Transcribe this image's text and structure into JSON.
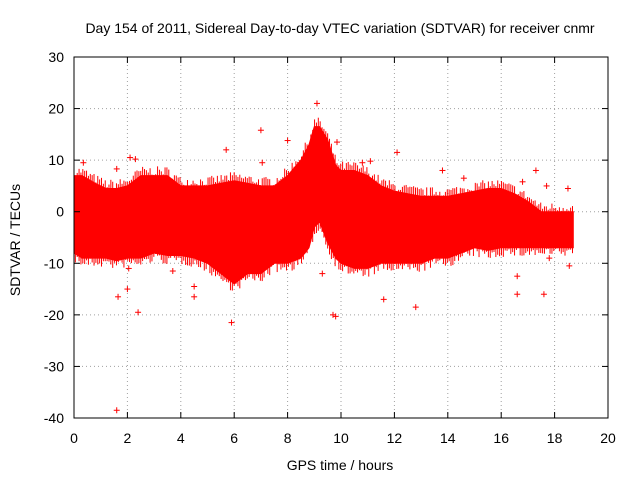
{
  "chart_data": {
    "type": "scatter",
    "title": "Day 154 of 2011, Sidereal Day-to-day VTEC variation (SDTVAR) for receiver cnmr",
    "xlabel": "GPS time / hours",
    "ylabel": "SDTVAR / TECUs",
    "xlim": [
      0,
      20
    ],
    "ylim": [
      -40,
      30
    ],
    "xticks": [
      "0",
      "2",
      "4",
      "6",
      "8",
      "10",
      "12",
      "14",
      "16",
      "18",
      "20"
    ],
    "yticks": [
      "30",
      "20",
      "10",
      "0",
      "-10",
      "-20",
      "-30",
      "-40"
    ],
    "grid": true,
    "marker": "+",
    "series_color": "#ff0000",
    "data_extent_hours": [
      0,
      18.7
    ],
    "envelope": {
      "x": [
        0,
        0.3,
        0.8,
        1.2,
        1.6,
        2.0,
        2.5,
        3.0,
        3.5,
        4.0,
        4.5,
        5.0,
        5.5,
        6.0,
        6.5,
        7.0,
        7.5,
        8.0,
        8.5,
        8.8,
        9.0,
        9.2,
        9.5,
        9.8,
        10.0,
        10.5,
        11.0,
        11.5,
        12.0,
        12.5,
        13.0,
        13.5,
        14.0,
        14.5,
        15.0,
        15.5,
        16.0,
        16.5,
        17.0,
        17.5,
        18.0,
        18.5,
        18.7
      ],
      "upper": [
        7,
        7,
        5.5,
        4.5,
        4.5,
        5,
        7,
        7,
        7,
        5,
        5,
        5,
        5.5,
        6,
        5.5,
        5,
        5,
        7,
        10,
        13,
        16.5,
        16.5,
        14,
        9,
        8,
        8,
        7,
        5,
        4,
        3.5,
        3,
        3,
        3,
        3.5,
        4,
        4.5,
        4.5,
        3.5,
        2,
        0,
        0,
        0,
        0
      ],
      "lower": [
        -8,
        -9,
        -9,
        -9,
        -9.5,
        -9,
        -9,
        -8,
        -8.5,
        -8.5,
        -9,
        -10,
        -12,
        -14,
        -12,
        -12,
        -10,
        -10,
        -9,
        -7,
        -3,
        -2,
        -6,
        -9,
        -10,
        -11,
        -11,
        -10,
        -10,
        -10,
        -10,
        -9,
        -9,
        -8,
        -7,
        -7.5,
        -7,
        -7,
        -7,
        -7,
        -7,
        -7,
        -7
      ]
    },
    "outliers": [
      {
        "x": 0.35,
        "y": 9.5
      },
      {
        "x": 1.6,
        "y": -38.5
      },
      {
        "x": 1.65,
        "y": -16.5
      },
      {
        "x": 1.6,
        "y": 8.3
      },
      {
        "x": 2.1,
        "y": 10.5
      },
      {
        "x": 2.3,
        "y": 10.2
      },
      {
        "x": 2.05,
        "y": -11
      },
      {
        "x": 2.0,
        "y": -15
      },
      {
        "x": 2.4,
        "y": -19.5
      },
      {
        "x": 3.7,
        "y": -11.5
      },
      {
        "x": 4.5,
        "y": -14.5
      },
      {
        "x": 4.5,
        "y": -16.5
      },
      {
        "x": 5.9,
        "y": -21.5
      },
      {
        "x": 5.7,
        "y": 12
      },
      {
        "x": 7.0,
        "y": 15.8
      },
      {
        "x": 7.05,
        "y": 9.5
      },
      {
        "x": 8.0,
        "y": 13.8
      },
      {
        "x": 9.1,
        "y": 21
      },
      {
        "x": 9.3,
        "y": -12
      },
      {
        "x": 9.7,
        "y": -20
      },
      {
        "x": 9.8,
        "y": -20.3
      },
      {
        "x": 9.85,
        "y": 13.5
      },
      {
        "x": 10.8,
        "y": 9.5
      },
      {
        "x": 11.1,
        "y": 9.8
      },
      {
        "x": 11.6,
        "y": -17
      },
      {
        "x": 12.1,
        "y": 11.5
      },
      {
        "x": 12.8,
        "y": -18.5
      },
      {
        "x": 13.8,
        "y": 8
      },
      {
        "x": 14.6,
        "y": 6.5
      },
      {
        "x": 16.6,
        "y": -12.5
      },
      {
        "x": 16.6,
        "y": -16
      },
      {
        "x": 16.8,
        "y": 5.8
      },
      {
        "x": 17.3,
        "y": 8
      },
      {
        "x": 17.6,
        "y": -16
      },
      {
        "x": 17.7,
        "y": 5
      },
      {
        "x": 17.8,
        "y": -9
      },
      {
        "x": 18.5,
        "y": 4.5
      },
      {
        "x": 18.55,
        "y": -10.5
      }
    ]
  }
}
